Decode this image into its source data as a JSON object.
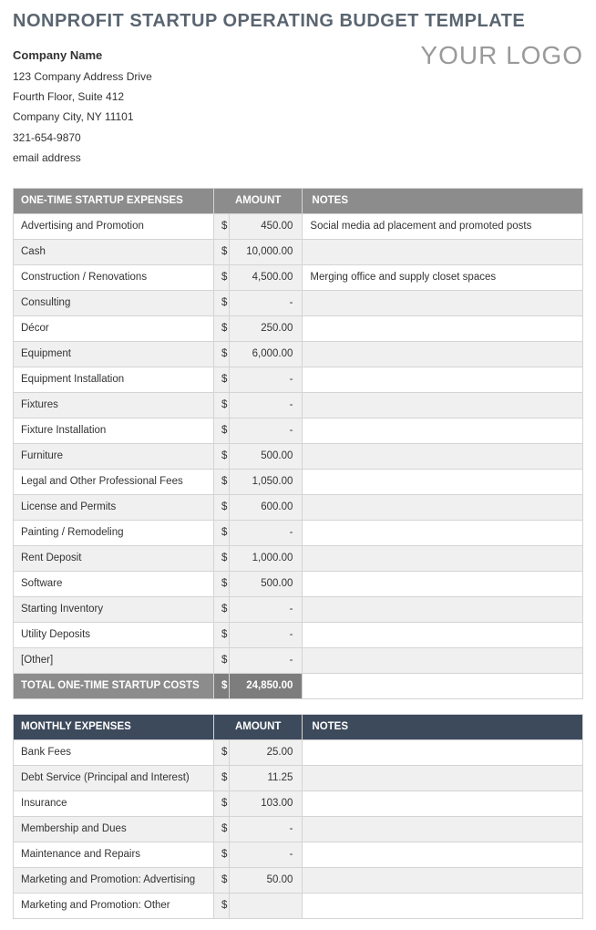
{
  "page_title": "NONPROFIT STARTUP OPERATING BUDGET TEMPLATE",
  "company": {
    "name": "Company Name",
    "address1": "123 Company Address Drive",
    "address2": "Fourth Floor, Suite 412",
    "city_line": "Company City, NY  11101",
    "phone": "321-654-9870",
    "email": "email address"
  },
  "logo_text": "YOUR LOGO",
  "colors": {
    "title_color": "#5a6570",
    "logo_color": "#9a9a9a",
    "header_gray": "#8c8c8c",
    "header_navy": "#3d4a5c",
    "row_alt": "#f0f0f0",
    "border": "#d4d4d4",
    "total_bg": "#8c8c8c",
    "total_amount_bg": "#7d7d7d"
  },
  "table1": {
    "header_label": "ONE-TIME STARTUP EXPENSES",
    "header_amount": "AMOUNT",
    "header_notes": "NOTES",
    "currency_symbol": "$",
    "rows": [
      {
        "label": "Advertising and Promotion",
        "amount": "450.00",
        "notes": "Social media ad placement and promoted posts"
      },
      {
        "label": "Cash",
        "amount": "10,000.00",
        "notes": ""
      },
      {
        "label": "Construction / Renovations",
        "amount": "4,500.00",
        "notes": "Merging office and supply closet spaces"
      },
      {
        "label": "Consulting",
        "amount": "-",
        "notes": ""
      },
      {
        "label": "Décor",
        "amount": "250.00",
        "notes": ""
      },
      {
        "label": "Equipment",
        "amount": "6,000.00",
        "notes": ""
      },
      {
        "label": "Equipment Installation",
        "amount": "-",
        "notes": ""
      },
      {
        "label": "Fixtures",
        "amount": "-",
        "notes": ""
      },
      {
        "label": "Fixture Installation",
        "amount": "-",
        "notes": ""
      },
      {
        "label": "Furniture",
        "amount": "500.00",
        "notes": ""
      },
      {
        "label": "Legal and Other Professional Fees",
        "amount": "1,050.00",
        "notes": ""
      },
      {
        "label": "License and Permits",
        "amount": "600.00",
        "notes": ""
      },
      {
        "label": "Painting / Remodeling",
        "amount": "-",
        "notes": ""
      },
      {
        "label": "Rent Deposit",
        "amount": "1,000.00",
        "notes": ""
      },
      {
        "label": "Software",
        "amount": "500.00",
        "notes": ""
      },
      {
        "label": "Starting Inventory",
        "amount": "-",
        "notes": ""
      },
      {
        "label": "Utility Deposits",
        "amount": "-",
        "notes": ""
      },
      {
        "label": "[Other]",
        "amount": "-",
        "notes": ""
      }
    ],
    "total_label": "TOTAL ONE-TIME STARTUP COSTS",
    "total_amount": "24,850.00"
  },
  "table2": {
    "header_label": "MONTHLY EXPENSES",
    "header_amount": "AMOUNT",
    "header_notes": "NOTES",
    "currency_symbol": "$",
    "rows": [
      {
        "label": "Bank Fees",
        "amount": "25.00",
        "notes": ""
      },
      {
        "label": "Debt Service (Principal and Interest)",
        "amount": "11.25",
        "notes": ""
      },
      {
        "label": "Insurance",
        "amount": "103.00",
        "notes": ""
      },
      {
        "label": "Membership and Dues",
        "amount": "-",
        "notes": ""
      },
      {
        "label": "Maintenance and Repairs",
        "amount": "-",
        "notes": ""
      },
      {
        "label": "Marketing and Promotion: Advertising",
        "amount": "50.00",
        "notes": ""
      },
      {
        "label": "Marketing and Promotion: Other",
        "amount": "",
        "notes": ""
      }
    ]
  }
}
